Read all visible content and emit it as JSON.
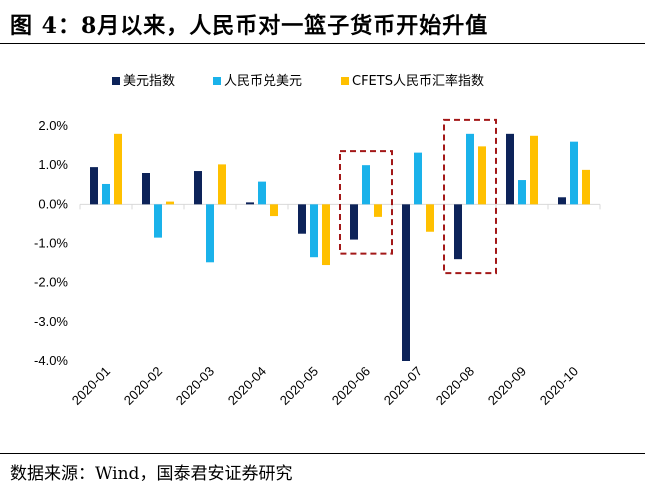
{
  "figure": {
    "title": "图 4：8月以来，人民币对一篮子货币开始升值",
    "source": "数据来源：Wind，国泰君安证券研究"
  },
  "chart_data": {
    "type": "bar",
    "categories": [
      "2020-01",
      "2020-02",
      "2020-03",
      "2020-04",
      "2020-05",
      "2020-06",
      "2020-07",
      "2020-08",
      "2020-09",
      "2020-10"
    ],
    "series": [
      {
        "name": "美元指数",
        "color": "#0d2359",
        "values": [
          0.95,
          0.8,
          0.85,
          0.05,
          -0.75,
          -0.9,
          -4.0,
          -1.4,
          1.8,
          0.18
        ]
      },
      {
        "name": "人民币兑美元",
        "color": "#1ab2ea",
        "values": [
          0.52,
          -0.85,
          -1.48,
          0.58,
          -1.35,
          1.0,
          1.32,
          1.8,
          0.62,
          1.6
        ]
      },
      {
        "name": "CFETS人民币汇率指数",
        "color": "#ffc000",
        "values": [
          1.8,
          0.07,
          1.02,
          -0.3,
          -1.55,
          -0.32,
          -0.7,
          1.48,
          1.75,
          0.88
        ]
      }
    ],
    "ylim": [
      -4.0,
      2.0
    ],
    "yticks": [
      "2.0%",
      "1.0%",
      "0.0%",
      "-1.0%",
      "-2.0%",
      "-3.0%",
      "-4.0%"
    ],
    "ytick_values": [
      2.0,
      1.0,
      0.0,
      -1.0,
      -2.0,
      -3.0,
      -4.0
    ],
    "highlight_categories": [
      "2020-06",
      "2020-08"
    ],
    "highlight_color": "#a31818",
    "legend_position": "top",
    "grid": false
  }
}
